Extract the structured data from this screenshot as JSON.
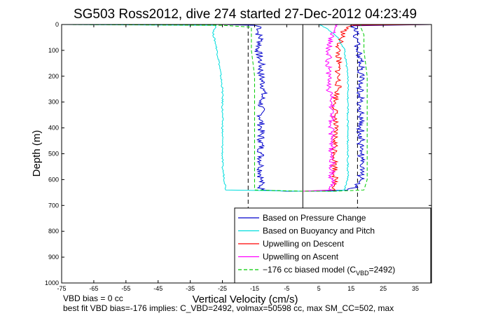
{
  "chart_data": {
    "type": "line",
    "title": "SG503 Ross2012, dive 274 started 27-Dec-2012 04:23:49",
    "xlabel": "Vertical Velocity (cm/s)",
    "ylabel": "Depth (m)",
    "xlim": [
      -75,
      40
    ],
    "ylim": [
      0,
      1000
    ],
    "y_reversed": true,
    "xticks": [
      "-75",
      "-65",
      "-55",
      "-45",
      "-35",
      "-25",
      "-15",
      "-5",
      "5",
      "15",
      "25",
      "35"
    ],
    "xtick_values": [
      -75,
      -65,
      -55,
      -45,
      -35,
      -25,
      -15,
      -5,
      5,
      15,
      25,
      35
    ],
    "yticks": [
      "0",
      "100",
      "200",
      "300",
      "400",
      "500",
      "600",
      "700",
      "800",
      "900",
      "1000"
    ],
    "ytick_values": [
      0,
      100,
      200,
      300,
      400,
      500,
      600,
      700,
      800,
      900,
      1000
    ],
    "grid": false,
    "legend_position": "lower-right",
    "reference_lines": [
      {
        "x": 0,
        "style": "solid",
        "color": "#000000"
      },
      {
        "x": -17,
        "style": "dashed",
        "color": "#000000"
      },
      {
        "x": 17,
        "style": "dashed",
        "color": "#000000"
      }
    ],
    "series": [
      {
        "name": "Based on Pressure Change",
        "color": "#0000cc",
        "style": "solid",
        "points": [
          [
            -25,
            0
          ],
          [
            -15,
            3
          ],
          [
            -13,
            10
          ],
          [
            -14,
            30
          ],
          [
            -13,
            60
          ],
          [
            -14,
            100
          ],
          [
            -13,
            150
          ],
          [
            -13,
            200
          ],
          [
            -12,
            250
          ],
          [
            -13,
            300
          ],
          [
            -13,
            350
          ],
          [
            -13,
            400
          ],
          [
            -13,
            450
          ],
          [
            -13,
            500
          ],
          [
            -13,
            550
          ],
          [
            -13,
            600
          ],
          [
            -13,
            640
          ],
          [
            -5,
            645
          ],
          [
            5,
            645
          ],
          [
            14,
            640
          ],
          [
            17,
            630
          ],
          [
            18,
            600
          ],
          [
            18,
            550
          ],
          [
            18,
            500
          ],
          [
            18,
            450
          ],
          [
            18,
            400
          ],
          [
            18,
            350
          ],
          [
            18,
            300
          ],
          [
            18,
            250
          ],
          [
            18,
            200
          ],
          [
            18,
            150
          ],
          [
            17,
            100
          ],
          [
            17,
            60
          ],
          [
            16,
            20
          ],
          [
            16,
            5
          ],
          [
            40,
            0
          ]
        ]
      },
      {
        "name": "Based on Buoyancy and Pitch",
        "color": "#00dddd",
        "style": "solid",
        "points": [
          [
            -75,
            0
          ],
          [
            -27,
            3
          ],
          [
            -27,
            10
          ],
          [
            -28,
            30
          ],
          [
            -27,
            80
          ],
          [
            -26,
            150
          ],
          [
            -25,
            250
          ],
          [
            -25,
            350
          ],
          [
            -25,
            450
          ],
          [
            -25,
            550
          ],
          [
            -24,
            630
          ],
          [
            -24,
            640
          ],
          [
            0,
            645
          ],
          [
            10,
            645
          ],
          [
            13,
            640
          ],
          [
            14,
            600
          ],
          [
            14,
            500
          ],
          [
            14,
            400
          ],
          [
            14,
            300
          ],
          [
            14,
            200
          ],
          [
            13,
            100
          ],
          [
            11,
            50
          ],
          [
            8,
            20
          ],
          [
            6,
            5
          ],
          [
            5,
            0
          ]
        ]
      },
      {
        "name": "Upwelling on Descent",
        "color": "#ff0000",
        "style": "solid",
        "points": [
          [
            40,
            0
          ],
          [
            15,
            3
          ],
          [
            13,
            20
          ],
          [
            12,
            50
          ],
          [
            11,
            90
          ],
          [
            11,
            150
          ],
          [
            11,
            200
          ],
          [
            11,
            250
          ],
          [
            10,
            300
          ],
          [
            10,
            350
          ],
          [
            10,
            400
          ],
          [
            10,
            450
          ],
          [
            10,
            500
          ],
          [
            10,
            550
          ],
          [
            10,
            600
          ],
          [
            10,
            640
          ],
          [
            0,
            645
          ]
        ]
      },
      {
        "name": "Upwelling on Ascent",
        "color": "#ff00ff",
        "style": "solid",
        "points": [
          [
            0,
            645
          ],
          [
            9,
            640
          ],
          [
            9,
            600
          ],
          [
            9,
            550
          ],
          [
            9,
            500
          ],
          [
            9,
            450
          ],
          [
            9,
            400
          ],
          [
            9,
            350
          ],
          [
            9,
            300
          ],
          [
            8,
            250
          ],
          [
            8,
            200
          ],
          [
            8,
            150
          ],
          [
            8,
            100
          ],
          [
            9,
            50
          ],
          [
            10,
            10
          ],
          [
            11,
            0
          ]
        ]
      },
      {
        "name": "−176 cc biased model (C_VBD=2492)",
        "color": "#00cc00",
        "style": "dashed",
        "points": [
          [
            -75,
            0
          ],
          [
            -25,
            3
          ],
          [
            -16,
            10
          ],
          [
            -16,
            40
          ],
          [
            -16,
            100
          ],
          [
            -15,
            200
          ],
          [
            -15,
            300
          ],
          [
            -15,
            400
          ],
          [
            -15,
            500
          ],
          [
            -15,
            600
          ],
          [
            -15,
            640
          ],
          [
            0,
            645
          ],
          [
            10,
            645
          ],
          [
            19,
            640
          ],
          [
            20,
            600
          ],
          [
            20,
            500
          ],
          [
            20,
            400
          ],
          [
            20,
            300
          ],
          [
            20,
            200
          ],
          [
            19,
            100
          ],
          [
            19,
            40
          ],
          [
            18,
            10
          ],
          [
            18,
            0
          ]
        ]
      }
    ],
    "legend_entries": [
      {
        "label": "Based on Pressure Change",
        "color": "#0000cc",
        "style": "solid"
      },
      {
        "label": "Based on Buoyancy and Pitch",
        "color": "#00dddd",
        "style": "solid"
      },
      {
        "label": "Upwelling on Descent",
        "color": "#ff0000",
        "style": "solid"
      },
      {
        "label": "Upwelling on Ascent",
        "color": "#ff00ff",
        "style": "solid"
      },
      {
        "label": "−176 cc biased model (C",
        "label_sub": "VBD",
        "label_tail": "=2492)",
        "color": "#00cc00",
        "style": "dashed"
      }
    ],
    "annotations": [
      "VBD bias = 0 cc",
      "best fit VBD bias=-176 implies: C_VBD=2492, volmax=50598 cc, max SM_CC=502, max"
    ]
  }
}
